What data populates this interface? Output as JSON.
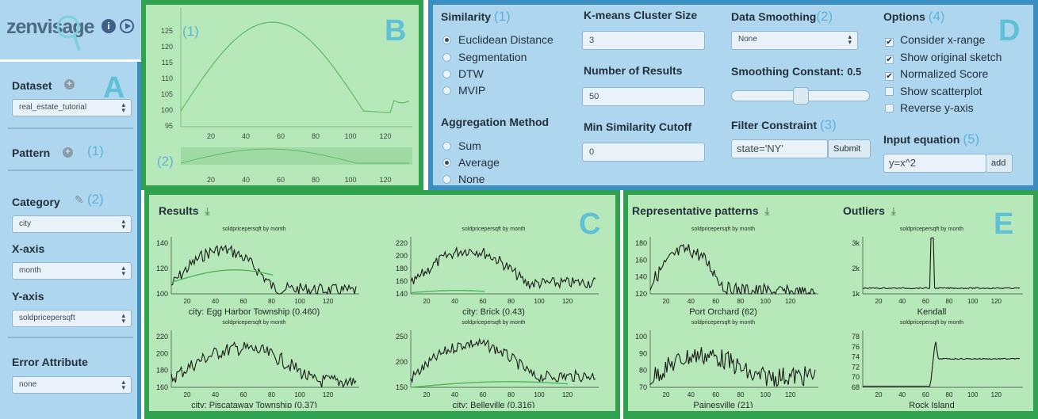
{
  "logo": {
    "text": "zenvisage"
  },
  "panel_labels": {
    "a": "A",
    "b": "B",
    "c": "C",
    "d": "D",
    "e": "E"
  },
  "sidebar": {
    "dataset_label": "Dataset",
    "dataset_value": "real_estate_tutorial",
    "pattern_label": "Pattern",
    "pattern_num": "(1)",
    "category_label": "Category",
    "category_num": "(2)",
    "category_value": "city",
    "xaxis_label": "X-axis",
    "xaxis_value": "month",
    "yaxis_label": "Y-axis",
    "yaxis_value": "soldpricepersqft",
    "error_label": "Error Attribute",
    "error_value": "none"
  },
  "sketch": {
    "num1": "(1)",
    "num2": "(2)",
    "y_ticks": [
      "125",
      "120",
      "115",
      "110",
      "105",
      "100",
      "95"
    ],
    "x_ticks": [
      "20",
      "40",
      "60",
      "80",
      "100",
      "120"
    ]
  },
  "controls": {
    "similarity_label": "Similarity",
    "similarity_num": "(1)",
    "similarity_options": [
      "Euclidean Distance",
      "Segmentation",
      "DTW",
      "MVIP"
    ],
    "similarity_selected": 0,
    "aggregation_label": "Aggregation Method",
    "aggregation_options": [
      "Sum",
      "Average",
      "None"
    ],
    "aggregation_selected": 1,
    "kmeans_label": "K-means Cluster Size",
    "kmeans_value": "3",
    "num_results_label": "Number of Results",
    "num_results_value": "50",
    "min_sim_label": "Min Similarity Cutoff",
    "min_sim_value": "0",
    "smoothing_label": "Data Smoothing",
    "smoothing_num": "(2)",
    "smoothing_value": "None",
    "smoothing_const_label": "Smoothing Constant:",
    "smoothing_const_value": "0.5",
    "smoothing_const_fraction": 0.5,
    "filter_label": "Filter Constraint",
    "filter_num": "(3)",
    "filter_value": "state='NY'",
    "submit_label": "Submit",
    "options_label": "Options",
    "options_num": "(4)",
    "options": [
      {
        "label": "Consider x-range",
        "checked": true
      },
      {
        "label": "Show original sketch",
        "checked": true
      },
      {
        "label": "Normalized Score",
        "checked": true
      },
      {
        "label": "Show scatterplot",
        "checked": false
      },
      {
        "label": "Reverse y-axis",
        "checked": false
      }
    ],
    "equation_label": "Input equation",
    "equation_num": "(5)",
    "equation_value": "y=x^2",
    "add_label": "add"
  },
  "results": {
    "title": "Results",
    "charts": [
      {
        "subtitle": "soldpricepersqft by month",
        "caption": "city: Egg Harbor Township (0.460)",
        "y_ticks": [
          "140",
          "120",
          "100"
        ]
      },
      {
        "subtitle": "soldpricepersqft by month",
        "caption": "city: Brick (0.43)",
        "y_ticks": [
          "220",
          "200",
          "180",
          "160",
          "140"
        ]
      },
      {
        "subtitle": "soldpricepersqft by month",
        "caption": "city: Piscataway Township (0.37)",
        "y_ticks": [
          "220",
          "200",
          "180",
          "160"
        ]
      },
      {
        "subtitle": "soldpricepersqft by month",
        "caption": "city: Belleville (0.316)",
        "y_ticks": [
          "250",
          "200",
          "150"
        ]
      }
    ]
  },
  "representative": {
    "title": "Representative patterns",
    "charts": [
      {
        "subtitle": "soldpricepersqft by month",
        "caption": "Port Orchard (62)",
        "y_ticks": [
          "180",
          "160",
          "140",
          "120"
        ]
      },
      {
        "subtitle": "soldpricepersqft by month",
        "caption": "Painesville (21)",
        "y_ticks": [
          "100",
          "90",
          "80",
          "70"
        ]
      }
    ]
  },
  "outliers": {
    "title": "Outliers",
    "charts": [
      {
        "subtitle": "soldpricepersqft by month",
        "caption": "Kendall",
        "y_ticks": [
          "3k",
          "2k",
          "1k"
        ]
      },
      {
        "subtitle": "soldpricepersqft by month",
        "caption": "Rock Island",
        "y_ticks": [
          "78",
          "76",
          "74",
          "72",
          "70",
          "68"
        ]
      }
    ]
  },
  "chart_x_ticks": [
    "20",
    "40",
    "60",
    "80",
    "100",
    "120"
  ],
  "colors": {
    "panel_blue": "#aed6ef",
    "frame_blue": "#3a8ec0",
    "panel_green": "#b7e8b9",
    "frame_green": "#2fa14f",
    "label_teal": "#5fc1d6",
    "number_blue": "#5fb3dc"
  }
}
